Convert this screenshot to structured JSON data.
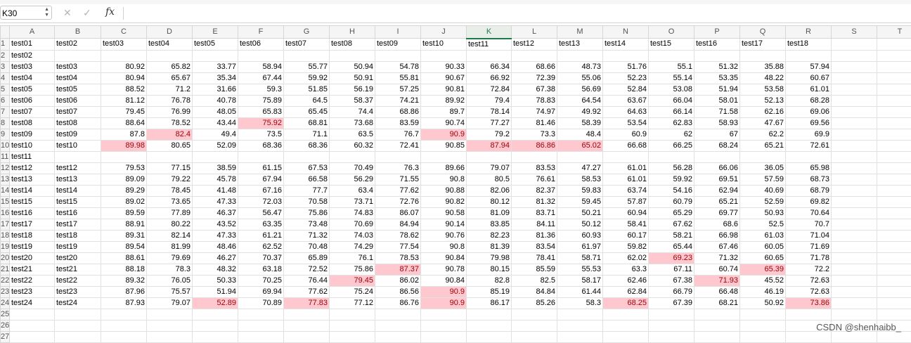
{
  "formula_bar": {
    "name_box": "K30",
    "fx_label": "fx",
    "cancel_icon": "x-icon",
    "confirm_icon": "check-icon",
    "value": ""
  },
  "sheet": {
    "columns": [
      "A",
      "B",
      "C",
      "D",
      "E",
      "F",
      "G",
      "H",
      "I",
      "J",
      "K",
      "L",
      "M",
      "N",
      "O",
      "P",
      "Q",
      "R",
      "S",
      "T"
    ],
    "active_column": "K",
    "row_numbers": [
      "1",
      "2",
      "3",
      "4",
      "5",
      "6",
      "7",
      "8",
      "9",
      "10",
      "11",
      "12",
      "13",
      "14",
      "15",
      "16",
      "17",
      "18",
      "19",
      "20",
      "21",
      "22",
      "23",
      "24",
      "25",
      "26",
      "27"
    ],
    "highlight_color": "#ffc7ce",
    "highlight_text_color": "#9c0006",
    "rows": [
      [
        "test01",
        "test02",
        "test03",
        "test04",
        "test05",
        "test06",
        "test07",
        "test08",
        "test09",
        "test10",
        "test11",
        "test12",
        "test13",
        "test14",
        "test15",
        "test16",
        "test17",
        "test18"
      ],
      [
        "test02"
      ],
      [
        "test03",
        "test03",
        "80.92",
        "65.82",
        "33.77",
        "58.94",
        "55.77",
        "50.94",
        "54.78",
        "90.33",
        "66.34",
        "68.66",
        "48.73",
        "51.76",
        "55.1",
        "51.32",
        "35.88",
        "57.94"
      ],
      [
        "test04",
        "test04",
        "80.94",
        "65.67",
        "35.34",
        "67.44",
        "59.92",
        "50.91",
        "55.81",
        "90.67",
        "66.92",
        "72.39",
        "55.06",
        "52.23",
        "55.14",
        "53.35",
        "48.22",
        "60.67"
      ],
      [
        "test05",
        "test05",
        "88.52",
        "71.2",
        "31.66",
        "59.3",
        "51.85",
        "56.19",
        "57.25",
        "90.81",
        "72.84",
        "67.38",
        "56.69",
        "52.84",
        "53.08",
        "51.94",
        "53.58",
        "61.01"
      ],
      [
        "test06",
        "test06",
        "81.12",
        "76.78",
        "40.78",
        "75.89",
        "64.5",
        "58.37",
        "74.21",
        "89.92",
        "79.4",
        "78.83",
        "64.54",
        "63.67",
        "66.04",
        "58.01",
        "52.13",
        "68.28"
      ],
      [
        "test07",
        "test07",
        "79.45",
        "76.99",
        "48.05",
        "65.83",
        "65.45",
        "74.4",
        "68.86",
        "89.7",
        "78.14",
        "74.97",
        "49.92",
        "64.63",
        "66.14",
        "71.58",
        "62.16",
        "69.06"
      ],
      [
        "test08",
        "test08",
        "88.64",
        "78.52",
        "43.44",
        "75.92",
        "68.81",
        "73.68",
        "83.59",
        "90.74",
        "77.27",
        "81.46",
        "58.39",
        "53.54",
        "62.83",
        "58.93",
        "47.67",
        "69.56"
      ],
      [
        "test09",
        "test09",
        "87.8",
        "82.4",
        "49.4",
        "73.5",
        "71.1",
        "63.5",
        "76.7",
        "90.9",
        "79.2",
        "73.3",
        "48.4",
        "60.9",
        "62",
        "67",
        "62.2",
        "69.9"
      ],
      [
        "test10",
        "test10",
        "89.98",
        "80.65",
        "52.09",
        "68.36",
        "68.36",
        "60.32",
        "72.41",
        "90.85",
        "87.94",
        "86.86",
        "65.02",
        "66.68",
        "66.25",
        "68.24",
        "65.21",
        "72.61"
      ],
      [
        "test11"
      ],
      [
        "test12",
        "test12",
        "79.53",
        "77.15",
        "38.59",
        "61.15",
        "67.53",
        "70.49",
        "76.3",
        "89.66",
        "79.07",
        "83.53",
        "47.27",
        "61.01",
        "56.28",
        "66.06",
        "36.05",
        "65.98"
      ],
      [
        "test13",
        "test13",
        "89.09",
        "79.22",
        "45.78",
        "67.94",
        "66.58",
        "56.29",
        "71.55",
        "90.8",
        "80.5",
        "76.61",
        "58.53",
        "61.01",
        "59.92",
        "69.51",
        "57.59",
        "68.73"
      ],
      [
        "test14",
        "test14",
        "89.29",
        "78.45",
        "41.48",
        "67.16",
        "77.7",
        "63.4",
        "77.62",
        "90.88",
        "82.06",
        "82.37",
        "59.83",
        "63.74",
        "54.16",
        "62.94",
        "40.69",
        "68.79"
      ],
      [
        "test15",
        "test15",
        "89.02",
        "73.65",
        "47.33",
        "72.03",
        "70.58",
        "73.71",
        "72.76",
        "90.82",
        "80.12",
        "81.32",
        "59.45",
        "57.87",
        "60.79",
        "65.21",
        "52.59",
        "69.82"
      ],
      [
        "test16",
        "test16",
        "89.59",
        "77.89",
        "46.37",
        "56.47",
        "75.86",
        "74.83",
        "86.07",
        "90.58",
        "81.09",
        "83.71",
        "50.21",
        "60.94",
        "65.29",
        "69.77",
        "50.93",
        "70.64"
      ],
      [
        "test17",
        "test17",
        "88.91",
        "80.22",
        "43.52",
        "63.35",
        "73.48",
        "70.69",
        "84.94",
        "90.14",
        "83.85",
        "84.11",
        "50.12",
        "58.41",
        "67.62",
        "68.6",
        "52.5",
        "70.7"
      ],
      [
        "test18",
        "test18",
        "89.31",
        "82.14",
        "47.33",
        "61.21",
        "71.32",
        "74.03",
        "78.62",
        "90.76",
        "82.23",
        "81.36",
        "60.93",
        "60.17",
        "58.21",
        "66.98",
        "61.03",
        "71.04"
      ],
      [
        "test19",
        "test19",
        "89.54",
        "81.99",
        "48.46",
        "62.52",
        "70.48",
        "74.29",
        "77.54",
        "90.8",
        "81.39",
        "83.54",
        "61.97",
        "59.82",
        "65.44",
        "67.46",
        "60.05",
        "71.69"
      ],
      [
        "test20",
        "test20",
        "88.61",
        "79.69",
        "46.27",
        "70.37",
        "65.89",
        "76.1",
        "78.53",
        "90.84",
        "79.98",
        "78.41",
        "58.71",
        "62.02",
        "69.23",
        "71.32",
        "60.65",
        "71.78"
      ],
      [
        "test21",
        "test21",
        "88.18",
        "78.3",
        "48.32",
        "63.18",
        "72.52",
        "75.86",
        "87.37",
        "90.78",
        "80.15",
        "85.59",
        "55.53",
        "63.3",
        "67.11",
        "60.74",
        "65.39",
        "72.2"
      ],
      [
        "test22",
        "test22",
        "89.32",
        "76.05",
        "50.33",
        "70.25",
        "76.44",
        "79.45",
        "86.02",
        "90.84",
        "82.8",
        "82.5",
        "58.17",
        "62.46",
        "67.38",
        "71.93",
        "45.52",
        "72.63"
      ],
      [
        "test23",
        "test23",
        "87.96",
        "75.57",
        "51.94",
        "69.94",
        "77.62",
        "75.24",
        "86.56",
        "90.9",
        "85.19",
        "84.84",
        "61.44",
        "62.84",
        "66.79",
        "66.48",
        "46.19",
        "72.63"
      ],
      [
        "test24",
        "test24",
        "87.93",
        "79.07",
        "52.89",
        "70.89",
        "77.83",
        "77.12",
        "86.76",
        "90.9",
        "86.17",
        "85.26",
        "58.3",
        "68.25",
        "67.39",
        "68.21",
        "50.92",
        "73.86"
      ],
      [],
      [],
      []
    ],
    "highlighted_cells": [
      [
        8,
        5
      ],
      [
        9,
        3
      ],
      [
        9,
        9
      ],
      [
        10,
        2
      ],
      [
        10,
        10
      ],
      [
        10,
        11
      ],
      [
        10,
        12
      ],
      [
        20,
        14
      ],
      [
        21,
        8
      ],
      [
        21,
        16
      ],
      [
        22,
        7
      ],
      [
        22,
        15
      ],
      [
        23,
        9
      ],
      [
        24,
        4
      ],
      [
        24,
        6
      ],
      [
        24,
        9
      ],
      [
        24,
        13
      ],
      [
        24,
        17
      ]
    ]
  },
  "watermark": "CSDN @shenhaibb_"
}
